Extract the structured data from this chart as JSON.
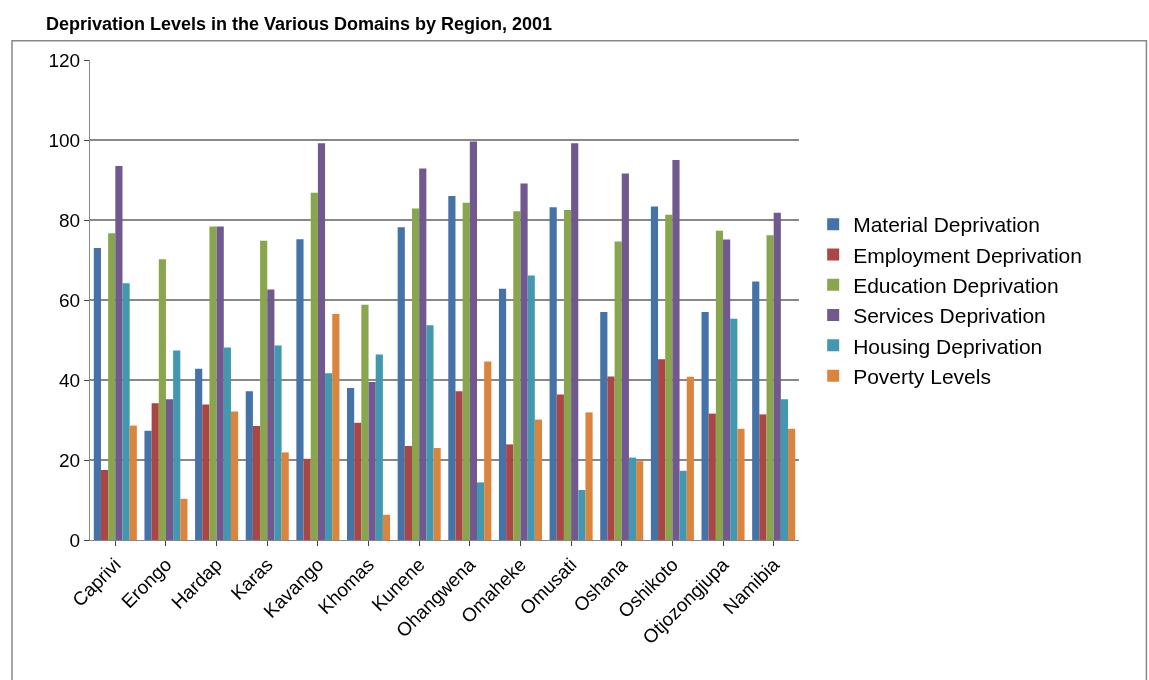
{
  "chart_data": {
    "type": "bar",
    "title": "Deprivation Levels in the Various Domains by Region, 2001",
    "categories": [
      "Caprivi",
      "Erongo",
      "Hardap",
      "Karas",
      "Kavango",
      "Khomas",
      "Kunene",
      "Ohangwena",
      "Omaheke",
      "Omusati",
      "Oshana",
      "Oshikoto",
      "Otjozongjupa",
      "Namibia"
    ],
    "series": [
      {
        "name": "Material Deprivation",
        "color": "#4572a7",
        "values": [
          73,
          27.3,
          42.8,
          37.2,
          75.2,
          38,
          78.2,
          86,
          62.8,
          83.2,
          57,
          83.4,
          57,
          64.6
        ]
      },
      {
        "name": "Employment Deprivation",
        "color": "#aa4643",
        "values": [
          17.5,
          34.2,
          33.9,
          28.5,
          20.3,
          29.3,
          23.5,
          37.2,
          23.9,
          36.4,
          40.9,
          45.2,
          31.6,
          31.4
        ]
      },
      {
        "name": "Education Deprivation",
        "color": "#89a54e",
        "values": [
          76.7,
          70.2,
          78.4,
          74.8,
          86.8,
          58.8,
          82.9,
          84.3,
          82.2,
          82.5,
          74.6,
          81.3,
          77.3,
          76.2
        ]
      },
      {
        "name": "Services Deprivation",
        "color": "#71588f",
        "values": [
          93.5,
          35.2,
          78.4,
          62.6,
          99.2,
          39.5,
          92.9,
          99.6,
          89.1,
          99.2,
          91.6,
          95,
          75.1,
          81.8
        ]
      },
      {
        "name": "Housing Deprivation",
        "color": "#4198af",
        "values": [
          64.2,
          47.4,
          48.1,
          48.6,
          41.7,
          46.4,
          53.7,
          14.4,
          66.1,
          12.5,
          20.6,
          17.3,
          55.3,
          35.2
        ]
      },
      {
        "name": "Poverty Levels",
        "color": "#db843d",
        "values": [
          28.6,
          10.3,
          32.1,
          21.9,
          56.5,
          6.3,
          23,
          44.6,
          30.1,
          31.9,
          19.7,
          40.8,
          27.8,
          27.8
        ]
      }
    ],
    "ylim": [
      0,
      120
    ],
    "yticks": [
      0,
      20,
      40,
      60,
      80,
      100,
      120
    ],
    "grid": "y",
    "legend": "right"
  }
}
